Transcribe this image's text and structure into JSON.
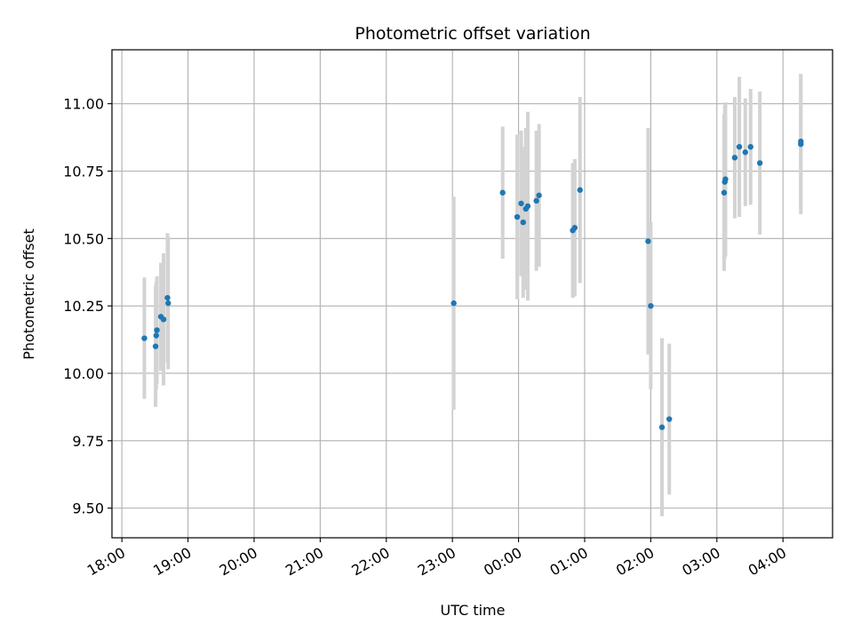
{
  "chart_data": {
    "type": "scatter",
    "title": "Photometric offset variation",
    "xlabel": "UTC time",
    "ylabel": "Photometric offset",
    "x_unit": "hours",
    "xlim": [
      17.85,
      28.75
    ],
    "ylim": [
      9.39,
      11.2
    ],
    "grid": true,
    "x_ticks": [
      {
        "value": 18,
        "label": "18:00"
      },
      {
        "value": 19,
        "label": "19:00"
      },
      {
        "value": 20,
        "label": "20:00"
      },
      {
        "value": 21,
        "label": "21:00"
      },
      {
        "value": 22,
        "label": "22:00"
      },
      {
        "value": 23,
        "label": "23:00"
      },
      {
        "value": 24,
        "label": "00:00"
      },
      {
        "value": 25,
        "label": "01:00"
      },
      {
        "value": 26,
        "label": "02:00"
      },
      {
        "value": 27,
        "label": "03:00"
      },
      {
        "value": 28,
        "label": "04:00"
      }
    ],
    "y_ticks": [
      {
        "value": 9.5,
        "label": "9.50"
      },
      {
        "value": 9.75,
        "label": "9.75"
      },
      {
        "value": 10.0,
        "label": "10.00"
      },
      {
        "value": 10.25,
        "label": "10.25"
      },
      {
        "value": 10.5,
        "label": "10.50"
      },
      {
        "value": 10.75,
        "label": "10.75"
      },
      {
        "value": 11.0,
        "label": "11.00"
      }
    ],
    "colors": {
      "point": "#1f77b4",
      "errorbar": "#d3d3d3",
      "grid": "#b0b0b0"
    },
    "points": [
      {
        "x": 18.34,
        "y": 10.13,
        "err": 0.225
      },
      {
        "x": 18.51,
        "y": 10.1,
        "err": 0.225
      },
      {
        "x": 18.52,
        "y": 10.14,
        "err": 0.2
      },
      {
        "x": 18.53,
        "y": 10.16,
        "err": 0.2
      },
      {
        "x": 18.59,
        "y": 10.21,
        "err": 0.2
      },
      {
        "x": 18.63,
        "y": 10.2,
        "err": 0.245
      },
      {
        "x": 18.69,
        "y": 10.28,
        "err": 0.24
      },
      {
        "x": 18.7,
        "y": 10.26,
        "err": 0.245
      },
      {
        "x": 23.02,
        "y": 10.26,
        "err": 0.395
      },
      {
        "x": 23.76,
        "y": 10.67,
        "err": 0.245
      },
      {
        "x": 23.98,
        "y": 10.58,
        "err": 0.305
      },
      {
        "x": 24.04,
        "y": 10.63,
        "err": 0.27
      },
      {
        "x": 24.07,
        "y": 10.56,
        "err": 0.28
      },
      {
        "x": 24.11,
        "y": 10.61,
        "err": 0.3
      },
      {
        "x": 24.14,
        "y": 10.62,
        "err": 0.35
      },
      {
        "x": 24.27,
        "y": 10.64,
        "err": 0.26
      },
      {
        "x": 24.31,
        "y": 10.66,
        "err": 0.265
      },
      {
        "x": 24.82,
        "y": 10.53,
        "err": 0.25
      },
      {
        "x": 24.85,
        "y": 10.54,
        "err": 0.255
      },
      {
        "x": 24.93,
        "y": 10.68,
        "err": 0.345
      },
      {
        "x": 25.96,
        "y": 10.49,
        "err": 0.42
      },
      {
        "x": 26.0,
        "y": 10.25,
        "err": 0.31
      },
      {
        "x": 26.17,
        "y": 9.8,
        "err": 0.33
      },
      {
        "x": 26.28,
        "y": 9.83,
        "err": 0.28
      },
      {
        "x": 27.11,
        "y": 10.67,
        "err": 0.29
      },
      {
        "x": 27.12,
        "y": 10.71,
        "err": 0.285
      },
      {
        "x": 27.13,
        "y": 10.72,
        "err": 0.285
      },
      {
        "x": 27.27,
        "y": 10.8,
        "err": 0.225
      },
      {
        "x": 27.34,
        "y": 10.84,
        "err": 0.26
      },
      {
        "x": 27.43,
        "y": 10.82,
        "err": 0.2
      },
      {
        "x": 27.51,
        "y": 10.84,
        "err": 0.215
      },
      {
        "x": 27.65,
        "y": 10.78,
        "err": 0.265
      },
      {
        "x": 28.27,
        "y": 10.85,
        "err": 0.26
      },
      {
        "x": 28.27,
        "y": 10.86,
        "err": 0.25
      }
    ]
  }
}
